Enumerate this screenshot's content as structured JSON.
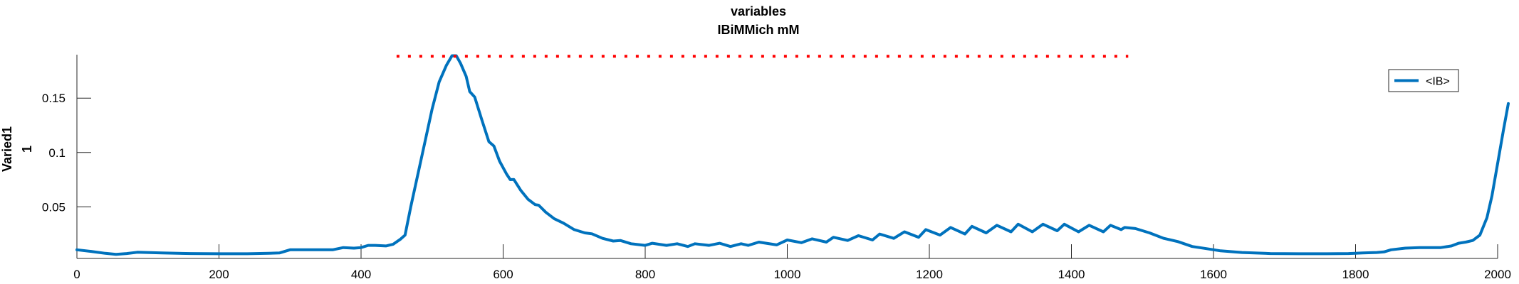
{
  "chart_data": {
    "type": "line",
    "title_line1": "variables",
    "title_line2": "IBiMMich mM",
    "ylabel_line1": "Varied1",
    "ylabel_line2": "1",
    "xlabel": "",
    "xlim": [
      0,
      2000
    ],
    "ylim": [
      0.0025,
      0.19
    ],
    "xticks": [
      0,
      200,
      400,
      600,
      800,
      1000,
      1200,
      1400,
      1600,
      1800,
      2000
    ],
    "yticks": [
      0.05,
      0.1,
      0.15
    ],
    "ytick_labels": [
      "0.05",
      "0.1",
      "0.15"
    ],
    "grid": false,
    "legend_position": "top-right",
    "series": [
      {
        "name": "<IB>",
        "color": "#0072BD",
        "points": [
          [
            0,
            0.0105
          ],
          [
            20,
            0.009
          ],
          [
            40,
            0.0072
          ],
          [
            55,
            0.0063
          ],
          [
            70,
            0.007
          ],
          [
            85,
            0.0082
          ],
          [
            120,
            0.0075
          ],
          [
            160,
            0.007
          ],
          [
            200,
            0.0068
          ],
          [
            240,
            0.0068
          ],
          [
            270,
            0.0072
          ],
          [
            285,
            0.0075
          ],
          [
            300,
            0.0105
          ],
          [
            320,
            0.0105
          ],
          [
            360,
            0.0105
          ],
          [
            375,
            0.0125
          ],
          [
            390,
            0.012
          ],
          [
            400,
            0.0125
          ],
          [
            410,
            0.0145
          ],
          [
            420,
            0.0145
          ],
          [
            435,
            0.014
          ],
          [
            445,
            0.0155
          ],
          [
            455,
            0.02
          ],
          [
            462,
            0.024
          ],
          [
            470,
            0.05
          ],
          [
            480,
            0.08
          ],
          [
            490,
            0.11
          ],
          [
            500,
            0.14
          ],
          [
            510,
            0.165
          ],
          [
            520,
            0.18
          ],
          [
            528,
            0.189
          ],
          [
            534,
            0.189
          ],
          [
            540,
            0.182
          ],
          [
            548,
            0.17
          ],
          [
            553,
            0.156
          ],
          [
            560,
            0.151
          ],
          [
            570,
            0.13
          ],
          [
            580,
            0.11
          ],
          [
            587,
            0.106
          ],
          [
            595,
            0.092
          ],
          [
            605,
            0.08
          ],
          [
            610,
            0.075
          ],
          [
            615,
            0.0752
          ],
          [
            625,
            0.065
          ],
          [
            635,
            0.057
          ],
          [
            645,
            0.052
          ],
          [
            650,
            0.0515
          ],
          [
            660,
            0.045
          ],
          [
            672,
            0.039
          ],
          [
            685,
            0.035
          ],
          [
            700,
            0.029
          ],
          [
            715,
            0.026
          ],
          [
            725,
            0.0252
          ],
          [
            740,
            0.021
          ],
          [
            755,
            0.0185
          ],
          [
            765,
            0.019
          ],
          [
            780,
            0.016
          ],
          [
            800,
            0.0145
          ],
          [
            810,
            0.0165
          ],
          [
            830,
            0.0145
          ],
          [
            845,
            0.016
          ],
          [
            860,
            0.0135
          ],
          [
            870,
            0.016
          ],
          [
            890,
            0.0145
          ],
          [
            905,
            0.0165
          ],
          [
            920,
            0.0135
          ],
          [
            935,
            0.016
          ],
          [
            945,
            0.0145
          ],
          [
            960,
            0.0175
          ],
          [
            985,
            0.015
          ],
          [
            1000,
            0.0195
          ],
          [
            1020,
            0.017
          ],
          [
            1035,
            0.0205
          ],
          [
            1055,
            0.0175
          ],
          [
            1065,
            0.022
          ],
          [
            1085,
            0.019
          ],
          [
            1100,
            0.0235
          ],
          [
            1120,
            0.0195
          ],
          [
            1130,
            0.025
          ],
          [
            1150,
            0.021
          ],
          [
            1165,
            0.027
          ],
          [
            1185,
            0.022
          ],
          [
            1195,
            0.029
          ],
          [
            1215,
            0.024
          ],
          [
            1230,
            0.031
          ],
          [
            1250,
            0.025
          ],
          [
            1260,
            0.032
          ],
          [
            1280,
            0.026
          ],
          [
            1295,
            0.033
          ],
          [
            1315,
            0.027
          ],
          [
            1325,
            0.034
          ],
          [
            1345,
            0.027
          ],
          [
            1360,
            0.034
          ],
          [
            1380,
            0.028
          ],
          [
            1390,
            0.034
          ],
          [
            1410,
            0.027
          ],
          [
            1425,
            0.033
          ],
          [
            1445,
            0.027
          ],
          [
            1455,
            0.033
          ],
          [
            1470,
            0.029
          ],
          [
            1475,
            0.031
          ],
          [
            1490,
            0.03
          ],
          [
            1510,
            0.026
          ],
          [
            1530,
            0.021
          ],
          [
            1550,
            0.018
          ],
          [
            1570,
            0.0135
          ],
          [
            1590,
            0.0115
          ],
          [
            1610,
            0.0095
          ],
          [
            1640,
            0.008
          ],
          [
            1680,
            0.007
          ],
          [
            1720,
            0.0068
          ],
          [
            1760,
            0.0068
          ],
          [
            1790,
            0.007
          ],
          [
            1810,
            0.0075
          ],
          [
            1830,
            0.008
          ],
          [
            1840,
            0.0085
          ],
          [
            1850,
            0.0105
          ],
          [
            1870,
            0.012
          ],
          [
            1890,
            0.0125
          ],
          [
            1920,
            0.0125
          ],
          [
            1935,
            0.014
          ],
          [
            1945,
            0.0165
          ],
          [
            1955,
            0.0175
          ],
          [
            1965,
            0.019
          ],
          [
            1975,
            0.024
          ],
          [
            1985,
            0.04
          ],
          [
            1992,
            0.06
          ],
          [
            2000,
            0.09
          ],
          [
            2008,
            0.12
          ],
          [
            2015,
            0.145
          ]
        ]
      },
      {
        "name": "",
        "style": "dotted",
        "color": "#FF0000",
        "points": [
          [
            450,
            0.1885
          ],
          [
            1480,
            0.1885
          ]
        ]
      }
    ],
    "legend": [
      {
        "label": "<IB>",
        "color": "#0072BD"
      }
    ]
  }
}
